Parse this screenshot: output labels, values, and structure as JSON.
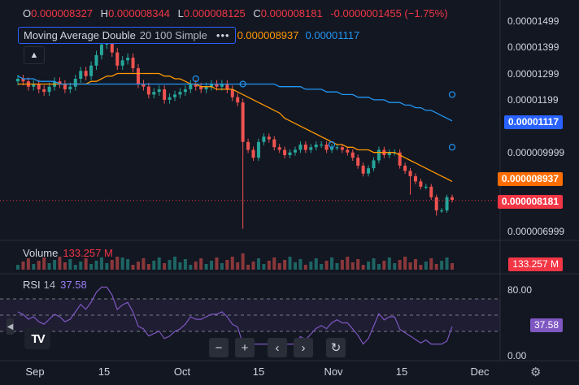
{
  "ohlc": {
    "o_label": "O",
    "o_value": "0.000008327",
    "h_label": "H",
    "h_value": "0.000008344",
    "l_label": "L",
    "l_value": "0.000008125",
    "c_label": "C",
    "c_value": "0.000008181",
    "change": "-0.0000001455 (−1.75%)"
  },
  "indicator": {
    "name": "Moving Average Double",
    "params": "20 100 Simple",
    "more_icon": "more-dots-icon",
    "ma_short_value": "0.000008937",
    "ma_long_value": "0.00001117"
  },
  "collapse_icon": "chevron-up-icon",
  "volume_panel": {
    "label": "Volume",
    "value": "133.257 M"
  },
  "rsi_panel": {
    "label": "RSI",
    "period": "14",
    "value": "37.58"
  },
  "badges": {
    "ma_long": "0.00001117",
    "ma_short": "0.000008937",
    "last_price": "0.000008181",
    "volume": "133.257 M",
    "rsi": "37.58"
  },
  "nav_buttons": [
    {
      "name": "zoom-out-button",
      "glyph": "−"
    },
    {
      "name": "zoom-in-button",
      "glyph": "+"
    },
    {
      "name": "scroll-left-button",
      "glyph": "‹"
    },
    {
      "name": "scroll-right-button",
      "glyph": "›"
    },
    {
      "name": "reset-chart-button",
      "glyph": "↻"
    }
  ],
  "logo_text": "TV",
  "settings_icon": "gear-icon",
  "colors": {
    "background": "#131722",
    "up": "#26a69a",
    "down": "#ef5350",
    "ma_short": "#ff9800",
    "ma_long": "#2196f3",
    "rsi": "#7e57c2",
    "last_price": "#f23645"
  },
  "chart_data": {
    "type": "candlestick",
    "price_axis_ticks": [
      "0.00001499",
      "0.00001399",
      "0.00001299",
      "0.00001199",
      "0.00001117",
      "0.000009999",
      "0.000008937",
      "0.000008181",
      "0.000006999"
    ],
    "price_axis_values": [
      1.499e-05,
      1.399e-05,
      1.299e-05,
      1.199e-05,
      1.117e-05,
      9.999e-06,
      8.937e-06,
      8.181e-06,
      6.999e-06
    ],
    "x_labels": [
      "Sep",
      "15",
      "Oct",
      "15",
      "Nov",
      "15",
      "Dec"
    ],
    "rsi_ticks": [
      "80.00",
      "0.00"
    ],
    "rsi_range": [
      0,
      100
    ],
    "rsi_bands": [
      70,
      50,
      30
    ],
    "candles_close": [
      1.28e-05,
      1.27e-05,
      1.25e-05,
      1.26e-05,
      1.24e-05,
      1.23e-05,
      1.25e-05,
      1.27e-05,
      1.26e-05,
      1.24e-05,
      1.25e-05,
      1.28e-05,
      1.31e-05,
      1.29e-05,
      1.33e-05,
      1.37e-05,
      1.41e-05,
      1.46e-05,
      1.38e-05,
      1.33e-05,
      1.35e-05,
      1.36e-05,
      1.32e-05,
      1.26e-05,
      1.25e-05,
      1.22e-05,
      1.23e-05,
      1.24e-05,
      1.2e-05,
      1.21e-05,
      1.22e-05,
      1.23e-05,
      1.24e-05,
      1.26e-05,
      1.25e-05,
      1.24e-05,
      1.25e-05,
      1.26e-05,
      1.25e-05,
      1.26e-05,
      1.24e-05,
      1.21e-05,
      1.19e-05,
      1.04e-05,
      1.01e-05,
      9.8e-06,
      1.04e-05,
      1.06e-05,
      1.05e-05,
      1.02e-05,
      1.01e-05,
      9.9e-06,
      1e-05,
      1.01e-05,
      1.03e-05,
      1.01e-05,
      1.02e-05,
      1.03e-05,
      1.03e-05,
      1.01e-05,
      1.02e-05,
      1.02e-05,
      1.01e-05,
      1e-05,
      9.8e-06,
      9.5e-06,
      9.2e-06,
      9.4e-06,
      9.7e-06,
      1.01e-05,
      9.9e-06,
      1e-05,
      1e-05,
      9.5e-06,
      9.3e-06,
      9.1e-06,
      8.9e-06,
      8.7e-06,
      8.7e-06,
      8.3e-06,
      7.8e-06,
      7.8e-06,
      8.3e-06,
      8.2e-06
    ],
    "candles_open": [
      1.27e-05,
      1.28e-05,
      1.27e-05,
      1.25e-05,
      1.26e-05,
      1.24e-05,
      1.23e-05,
      1.25e-05,
      1.27e-05,
      1.26e-05,
      1.24e-05,
      1.25e-05,
      1.28e-05,
      1.31e-05,
      1.29e-05,
      1.33e-05,
      1.37e-05,
      1.41e-05,
      1.46e-05,
      1.38e-05,
      1.33e-05,
      1.35e-05,
      1.36e-05,
      1.32e-05,
      1.26e-05,
      1.25e-05,
      1.22e-05,
      1.23e-05,
      1.24e-05,
      1.2e-05,
      1.21e-05,
      1.22e-05,
      1.23e-05,
      1.24e-05,
      1.26e-05,
      1.25e-05,
      1.24e-05,
      1.25e-05,
      1.26e-05,
      1.25e-05,
      1.26e-05,
      1.24e-05,
      1.21e-05,
      1.19e-05,
      1.04e-05,
      1.01e-05,
      9.8e-06,
      1.04e-05,
      1.06e-05,
      1.05e-05,
      1.02e-05,
      1.01e-05,
      9.9e-06,
      1e-05,
      1.01e-05,
      1.03e-05,
      1.01e-05,
      1.02e-05,
      1.03e-05,
      1.03e-05,
      1.01e-05,
      1.02e-05,
      1.02e-05,
      1.01e-05,
      1e-05,
      9.8e-06,
      9.5e-06,
      9.2e-06,
      9.4e-06,
      9.7e-06,
      1.01e-05,
      9.9e-06,
      1e-05,
      1e-05,
      9.5e-06,
      9.3e-06,
      9.1e-06,
      8.9e-06,
      8.7e-06,
      8.7e-06,
      8.3e-06,
      7.8e-06,
      7.8e-06,
      8.3e-06
    ],
    "ma_short_series": [
      1.26e-05,
      1.26e-05,
      1.26e-05,
      1.26e-05,
      1.26e-05,
      1.26e-05,
      1.26e-05,
      1.26e-05,
      1.26e-05,
      1.26e-05,
      1.26e-05,
      1.26e-05,
      1.26e-05,
      1.26e-05,
      1.27e-05,
      1.27e-05,
      1.28e-05,
      1.29e-05,
      1.29e-05,
      1.3e-05,
      1.3e-05,
      1.3e-05,
      1.3e-05,
      1.3e-05,
      1.3e-05,
      1.3e-05,
      1.3e-05,
      1.3e-05,
      1.29e-05,
      1.29e-05,
      1.28e-05,
      1.28e-05,
      1.27e-05,
      1.26e-05,
      1.26e-05,
      1.25e-05,
      1.25e-05,
      1.25e-05,
      1.24e-05,
      1.24e-05,
      1.24e-05,
      1.24e-05,
      1.23e-05,
      1.22e-05,
      1.21e-05,
      1.2e-05,
      1.19e-05,
      1.18e-05,
      1.17e-05,
      1.16e-05,
      1.15e-05,
      1.13e-05,
      1.12e-05,
      1.11e-05,
      1.1e-05,
      1.09e-05,
      1.08e-05,
      1.07e-05,
      1.06e-05,
      1.05e-05,
      1.04e-05,
      1.03e-05,
      1.03e-05,
      1.02e-05,
      1.02e-05,
      1.01e-05,
      1.01e-05,
      1.01e-05,
      1e-05,
      1e-05,
      1e-05,
      1e-05,
      1e-05,
      9.9e-06,
      9.8e-06,
      9.7e-06,
      9.6e-06,
      9.5e-06,
      9.4e-06,
      9.3e-06,
      9.2e-06,
      9.1e-06,
      9e-06,
      8.9e-06
    ],
    "ma_long_series": [
      1.29e-05,
      1.28e-05,
      1.28e-05,
      1.28e-05,
      1.27e-05,
      1.27e-05,
      1.27e-05,
      1.27e-05,
      1.26e-05,
      1.26e-05,
      1.26e-05,
      1.26e-05,
      1.26e-05,
      1.26e-05,
      1.26e-05,
      1.26e-05,
      1.26e-05,
      1.26e-05,
      1.26e-05,
      1.26e-05,
      1.26e-05,
      1.26e-05,
      1.26e-05,
      1.26e-05,
      1.26e-05,
      1.26e-05,
      1.26e-05,
      1.26e-05,
      1.26e-05,
      1.26e-05,
      1.26e-05,
      1.26e-05,
      1.26e-05,
      1.26e-05,
      1.26e-05,
      1.26e-05,
      1.26e-05,
      1.26e-05,
      1.26e-05,
      1.26e-05,
      1.26e-05,
      1.26e-05,
      1.26e-05,
      1.26e-05,
      1.26e-05,
      1.26e-05,
      1.26e-05,
      1.26e-05,
      1.26e-05,
      1.26e-05,
      1.25e-05,
      1.25e-05,
      1.25e-05,
      1.25e-05,
      1.25e-05,
      1.24e-05,
      1.24e-05,
      1.24e-05,
      1.24e-05,
      1.23e-05,
      1.23e-05,
      1.23e-05,
      1.22e-05,
      1.22e-05,
      1.22e-05,
      1.21e-05,
      1.21e-05,
      1.21e-05,
      1.2e-05,
      1.2e-05,
      1.2e-05,
      1.19e-05,
      1.19e-05,
      1.19e-05,
      1.18e-05,
      1.18e-05,
      1.17e-05,
      1.17e-05,
      1.16e-05,
      1.16e-05,
      1.15e-05,
      1.14e-05,
      1.13e-05,
      1.12e-05
    ],
    "volume_label": "133.257 M",
    "rsi_label": "37.58"
  }
}
